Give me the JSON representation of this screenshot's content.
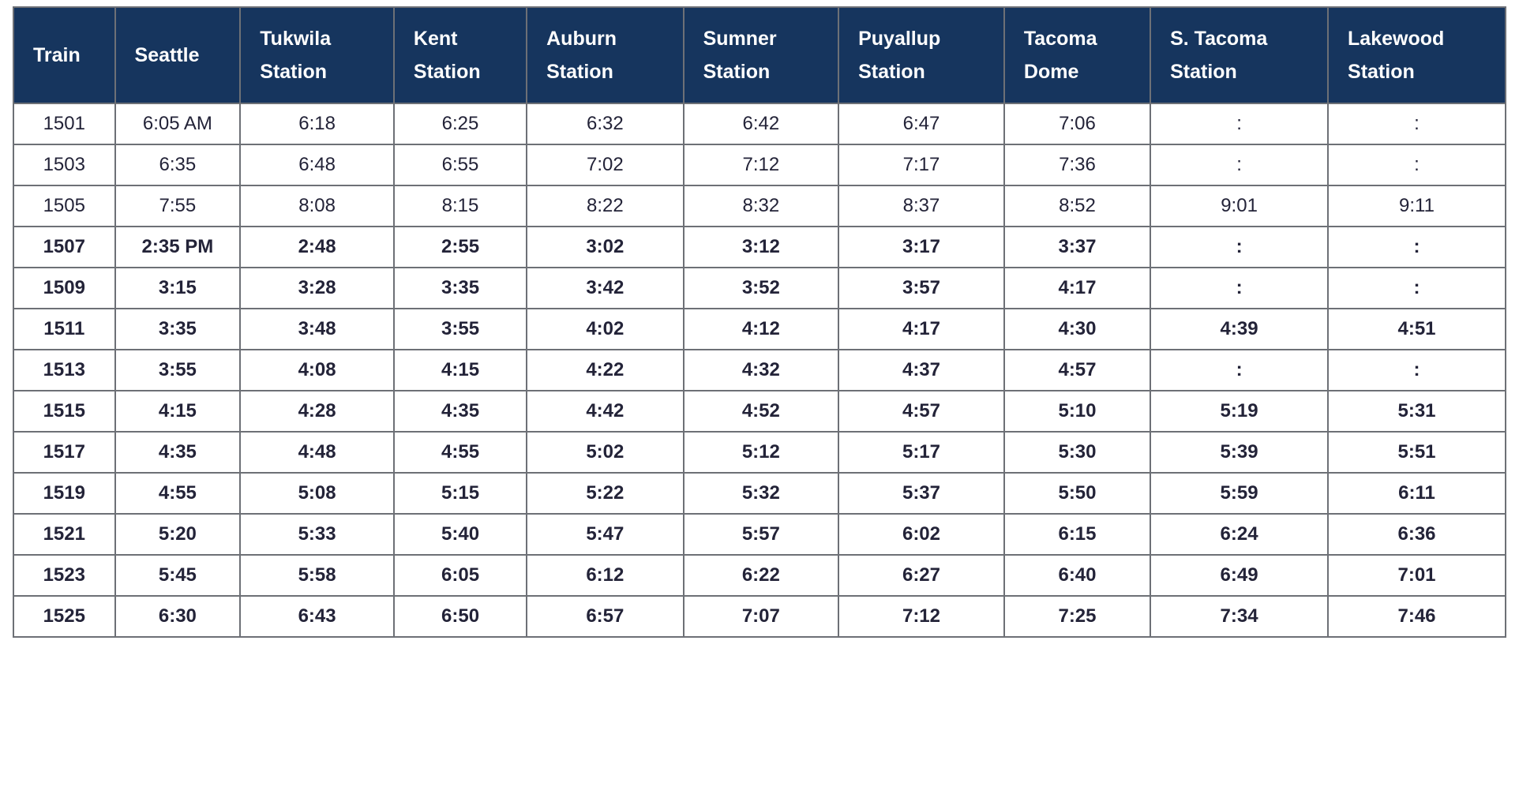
{
  "chart_data": {
    "type": "table",
    "columns": [
      "Train",
      "Seattle",
      "Tukwila\nStation",
      "Kent\nStation",
      "Auburn\nStation",
      "Sumner\nStation",
      "Puyallup\nStation",
      "Tacoma\nDome",
      "S. Tacoma\nStation",
      "Lakewood\nStation"
    ],
    "rows": [
      {
        "train": "1501",
        "times": [
          "6:05 AM",
          "6:18",
          "6:25",
          "6:32",
          "6:42",
          "6:47",
          "7:06",
          ":",
          ":"
        ],
        "emphasis": false
      },
      {
        "train": "1503",
        "times": [
          "6:35",
          "6:48",
          "6:55",
          "7:02",
          "7:12",
          "7:17",
          "7:36",
          ":",
          ":"
        ],
        "emphasis": false
      },
      {
        "train": "1505",
        "times": [
          "7:55",
          "8:08",
          "8:15",
          "8:22",
          "8:32",
          "8:37",
          "8:52",
          "9:01",
          "9:11"
        ],
        "emphasis": false
      },
      {
        "train": "1507",
        "times": [
          "2:35 PM",
          "2:48",
          "2:55",
          "3:02",
          "3:12",
          "3:17",
          "3:37",
          ":",
          ":"
        ],
        "emphasis": true
      },
      {
        "train": "1509",
        "times": [
          "3:15",
          "3:28",
          "3:35",
          "3:42",
          "3:52",
          "3:57",
          "4:17",
          ":",
          ":"
        ],
        "emphasis": true
      },
      {
        "train": "1511",
        "times": [
          "3:35",
          "3:48",
          "3:55",
          "4:02",
          "4:12",
          "4:17",
          "4:30",
          "4:39",
          "4:51"
        ],
        "emphasis": true
      },
      {
        "train": "1513",
        "times": [
          "3:55",
          "4:08",
          "4:15",
          "4:22",
          "4:32",
          "4:37",
          "4:57",
          ":",
          ":"
        ],
        "emphasis": true
      },
      {
        "train": "1515",
        "times": [
          "4:15",
          "4:28",
          "4:35",
          "4:42",
          "4:52",
          "4:57",
          "5:10",
          "5:19",
          "5:31"
        ],
        "emphasis": true
      },
      {
        "train": "1517",
        "times": [
          "4:35",
          "4:48",
          "4:55",
          "5:02",
          "5:12",
          "5:17",
          "5:30",
          "5:39",
          "5:51"
        ],
        "emphasis": true
      },
      {
        "train": "1519",
        "times": [
          "4:55",
          "5:08",
          "5:15",
          "5:22",
          "5:32",
          "5:37",
          "5:50",
          "5:59",
          "6:11"
        ],
        "emphasis": true
      },
      {
        "train": "1521",
        "times": [
          "5:20",
          "5:33",
          "5:40",
          "5:47",
          "5:57",
          "6:02",
          "6:15",
          "6:24",
          "6:36"
        ],
        "emphasis": true
      },
      {
        "train": "1523",
        "times": [
          "5:45",
          "5:58",
          "6:05",
          "6:12",
          "6:22",
          "6:27",
          "6:40",
          "6:49",
          "7:01"
        ],
        "emphasis": true
      },
      {
        "train": "1525",
        "times": [
          "6:30",
          "6:43",
          "6:50",
          "6:57",
          "7:07",
          "7:12",
          "7:25",
          "7:34",
          "7:46"
        ],
        "emphasis": true
      }
    ]
  },
  "colors": {
    "header_bg": "#16355E",
    "header_text": "#FFFFFF",
    "border": "#6D7076",
    "text": "#232338"
  }
}
